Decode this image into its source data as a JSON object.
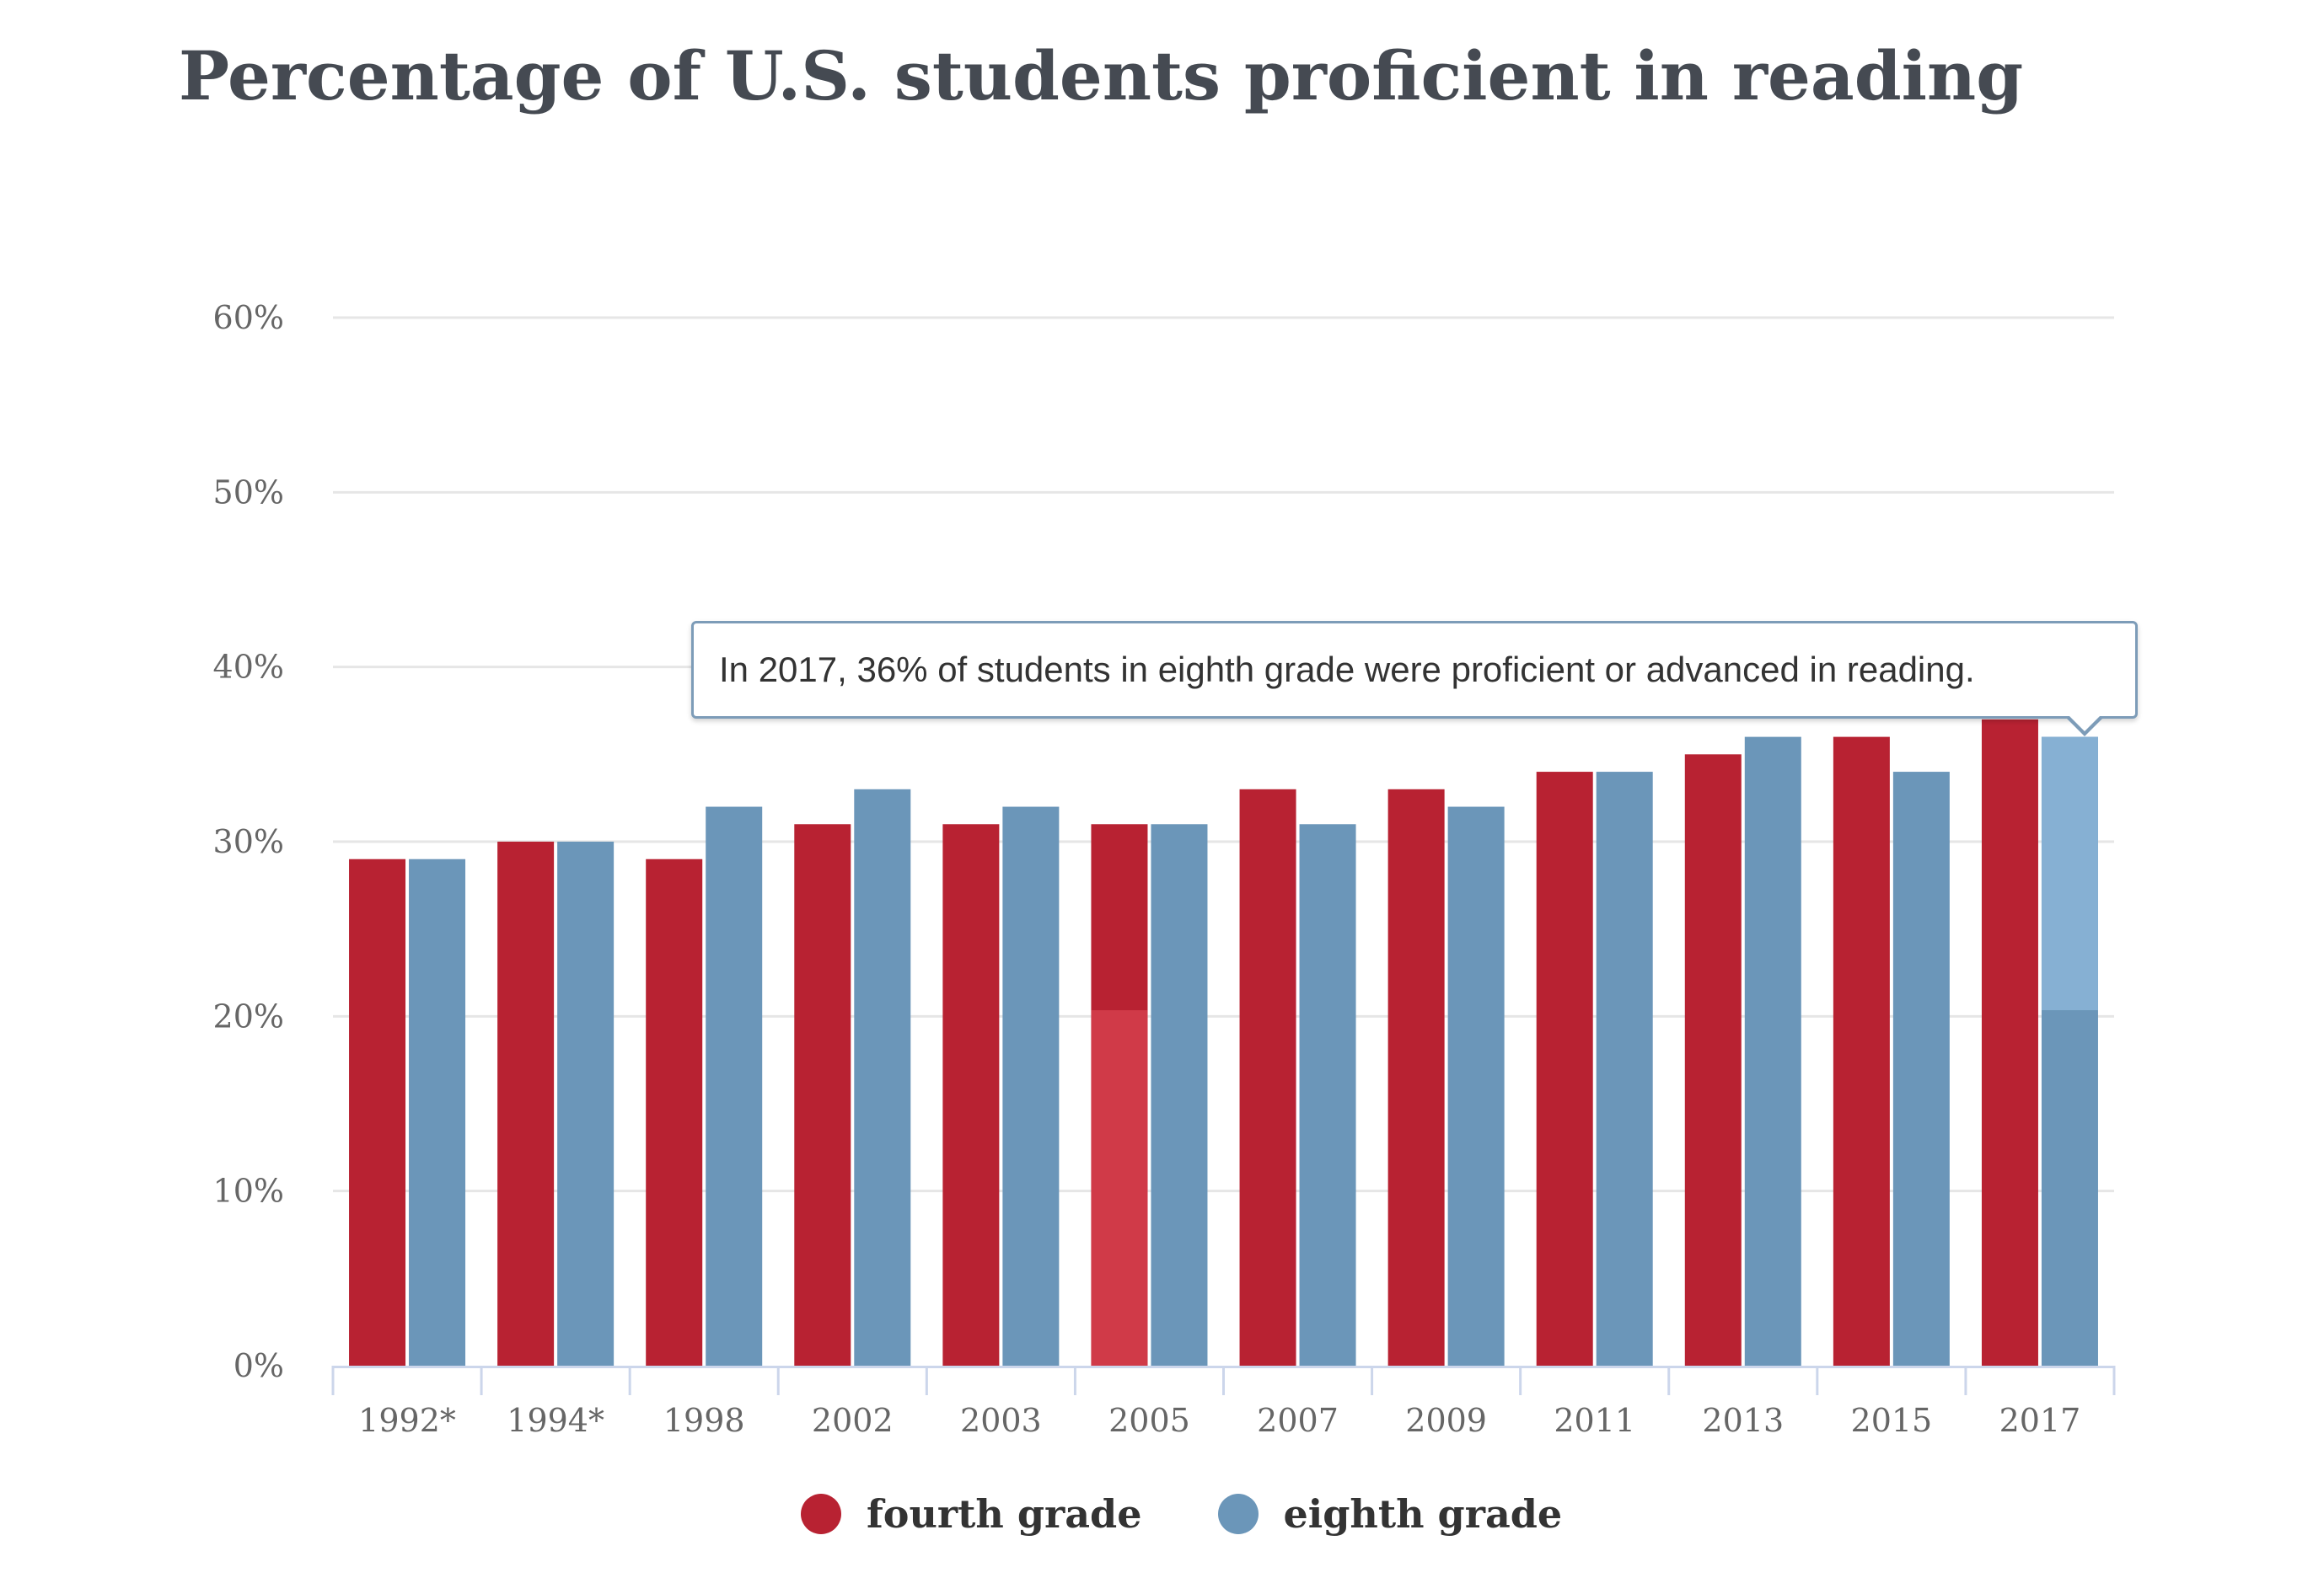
{
  "chart_data": {
    "type": "bar",
    "title": "Percentage of U.S. students proficient in reading",
    "categories": [
      "1992*",
      "1994*",
      "1998",
      "2002",
      "2003",
      "2005",
      "2007",
      "2009",
      "2011",
      "2013",
      "2015",
      "2017"
    ],
    "series": [
      {
        "name": "fourth grade",
        "color": "#b82232",
        "values": [
          29,
          30,
          29,
          31,
          31,
          31,
          33,
          33,
          34,
          35,
          36,
          37
        ]
      },
      {
        "name": "eighth grade",
        "color": "#6b96b9",
        "values": [
          29,
          30,
          32,
          33,
          32,
          31,
          31,
          32,
          34,
          36,
          34,
          36
        ]
      }
    ],
    "y_ticks": [
      "0%",
      "10%",
      "20%",
      "30%",
      "40%",
      "50%",
      "60%"
    ],
    "ylim": [
      0,
      60
    ],
    "xlabel": "",
    "ylabel": "",
    "grid": true,
    "legend_position": "bottom-center",
    "tooltip": "In 2017, 36% of students in eighth grade were proficient or advanced in reading."
  },
  "colors": {
    "fourth_grade": "#b82232",
    "eighth_grade": "#6b96b9",
    "highlight_fourth": "#d03a48",
    "highlight_eighth": "#86b0d3",
    "gridline": "#e6e6e6",
    "axis": "#ccd6eb"
  }
}
